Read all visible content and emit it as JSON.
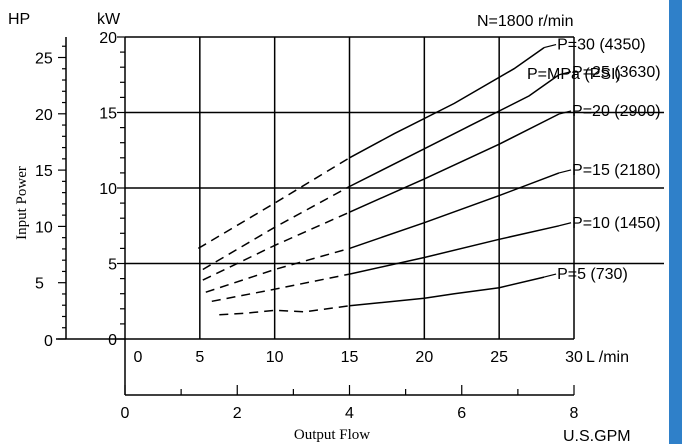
{
  "chart_data": {
    "type": "line",
    "title": "N=1800 r/min",
    "xlabel": "Output Flow",
    "ylabel": "Input Power",
    "x_unit_lmin": "L /min",
    "x_unit_gpm": "U.S.GPM",
    "y_unit_kw": "kW",
    "y_unit_hp": "HP",
    "legend_header": "P=MPa (PSI)",
    "xlim": [
      0,
      30
    ],
    "ylim": [
      0,
      20
    ],
    "x_ticks_lmin": [
      "0",
      "5",
      "10",
      "15",
      "20",
      "25",
      "30"
    ],
    "x_ticks_gpm": [
      "0",
      "2",
      "4",
      "6",
      "8"
    ],
    "y_ticks_kw": [
      "0",
      "5",
      "10",
      "15",
      "20"
    ],
    "y_ticks_hp": [
      "5",
      "10",
      "15",
      "20",
      "25"
    ],
    "grid": true,
    "accent_color": "#2f80c9",
    "series": [
      {
        "name": "P=30 (4350)",
        "dashed_until_x": 15,
        "x": [
          4.9,
          10,
          15,
          18,
          22,
          26,
          28
        ],
        "y": [
          6.0,
          9.0,
          12.0,
          13.6,
          15.6,
          17.9,
          19.3
        ]
      },
      {
        "name": "P=25 (3630)",
        "dashed_until_x": 15,
        "x": [
          5.2,
          10,
          15,
          19,
          23,
          27,
          29
        ],
        "y": [
          4.6,
          7.4,
          10.1,
          12.1,
          14.1,
          16.1,
          17.5
        ]
      },
      {
        "name": "P=20 (2900)",
        "dashed_until_x": 15,
        "x": [
          5.2,
          10,
          15,
          20,
          25,
          29
        ],
        "y": [
          3.9,
          6.2,
          8.4,
          10.6,
          12.9,
          14.9
        ]
      },
      {
        "name": "P=15 (2180)",
        "dashed_until_x": 15,
        "x": [
          5.4,
          10,
          15,
          20,
          25,
          29
        ],
        "y": [
          3.1,
          4.6,
          6.0,
          7.7,
          9.5,
          11.0
        ]
      },
      {
        "name": "P=10 (1450)",
        "dashed_until_x": 15,
        "x": [
          5.8,
          10,
          15,
          20,
          25,
          29
        ],
        "y": [
          2.5,
          3.3,
          4.3,
          5.4,
          6.6,
          7.5
        ]
      },
      {
        "name": "P=5 (730)",
        "dashed_until_x": 15,
        "x": [
          6.3,
          8,
          10,
          12,
          15,
          17,
          20,
          22,
          25,
          28
        ],
        "y": [
          1.6,
          1.7,
          1.9,
          1.8,
          2.2,
          2.4,
          2.7,
          3.0,
          3.4,
          4.1
        ]
      }
    ]
  }
}
